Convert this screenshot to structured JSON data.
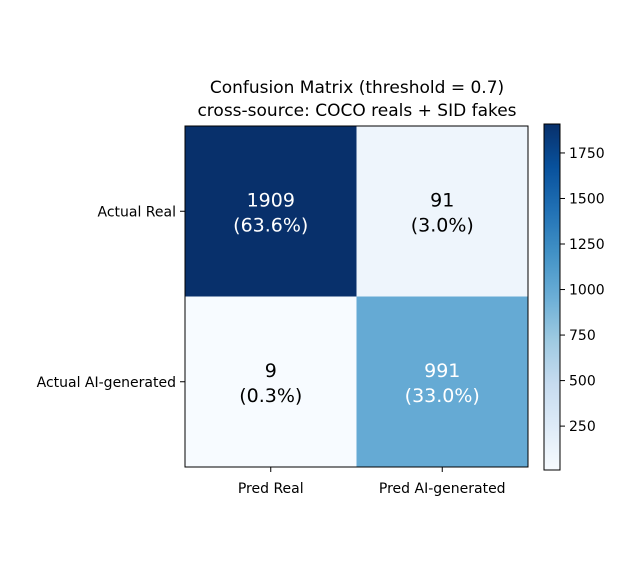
{
  "chart_data": {
    "type": "heatmap",
    "title": "Confusion Matrix (threshold = 0.7)",
    "subtitle": "cross-source: COCO reals + SID fakes",
    "row_labels": [
      "Actual Real",
      "Actual AI-generated"
    ],
    "col_labels": [
      "Pred Real",
      "Pred AI-generated"
    ],
    "values": [
      [
        1909,
        91
      ],
      [
        9,
        991
      ]
    ],
    "cell_labels": [
      [
        {
          "count": "1909",
          "percent": "(63.6%)"
        },
        {
          "count": "91",
          "percent": "(3.0%)"
        }
      ],
      [
        {
          "count": "9",
          "percent": "(0.3%)"
        },
        {
          "count": "991",
          "percent": "(33.0%)"
        }
      ]
    ],
    "colormap": "Blues",
    "vmin": 9,
    "vmax": 1909,
    "colorbar_ticks": [
      250,
      500,
      750,
      1000,
      1250,
      1500,
      1750
    ],
    "colorbar_tick_labels": [
      "250",
      "500",
      "750",
      "1000",
      "1250",
      "1500",
      "1750"
    ],
    "grid": false
  }
}
